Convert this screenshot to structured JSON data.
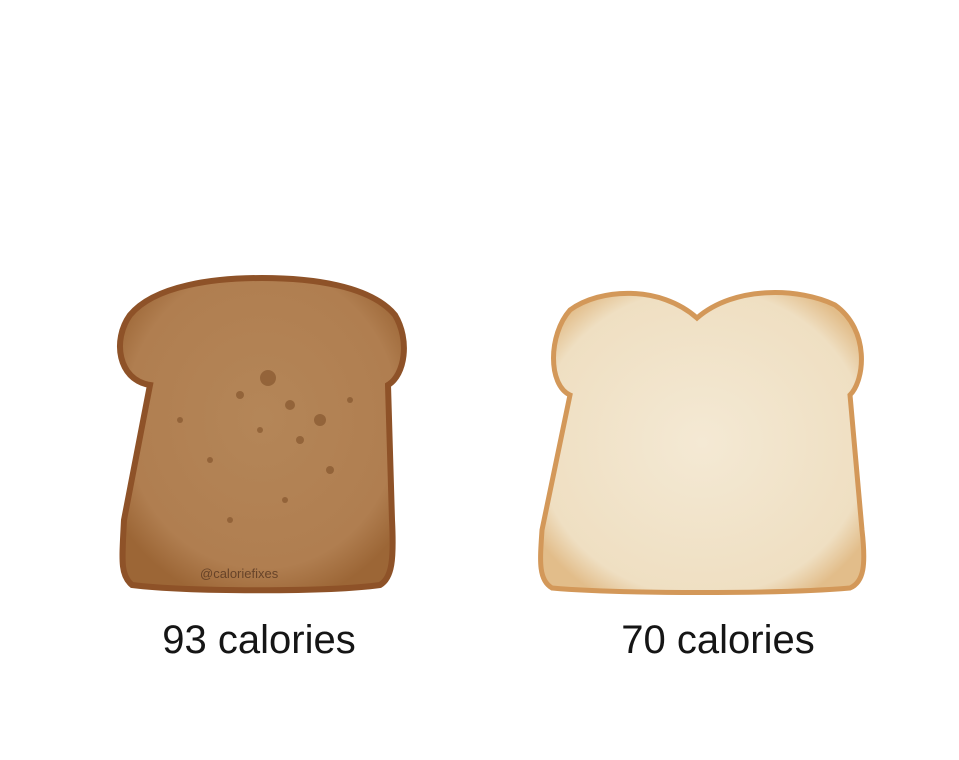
{
  "items": [
    {
      "label": "93 calories",
      "bread": "whole-wheat",
      "crust_color": "#a8693a",
      "crumb_color": "#b98a5c"
    },
    {
      "label": "70 calories",
      "bread": "white",
      "crust_color": "#d49a5e",
      "crumb_color": "#f2e5cd"
    }
  ],
  "watermark": "@caloriefixes"
}
